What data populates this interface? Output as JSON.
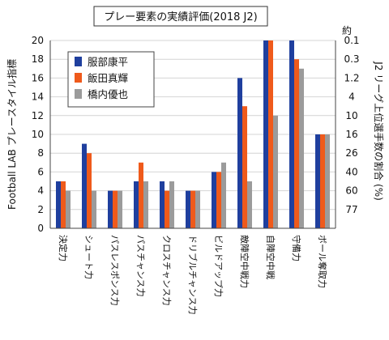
{
  "chart_data": {
    "type": "bar",
    "title": "プレー要素の実績評価(2018 J2)",
    "ylabel": "Football LAB プレースタイル指標",
    "ylabel_right": "J2 リーグ上位選手数の割合 (%)",
    "ylabel_right_prefix": "約",
    "ylim": [
      0,
      20
    ],
    "y_ticks": [
      0,
      2,
      4,
      6,
      8,
      10,
      12,
      14,
      16,
      18,
      20
    ],
    "y_right_ticks": [
      "0.1",
      "0.3",
      "1.2",
      "4",
      "10",
      "16",
      "26",
      "40",
      "60",
      "77"
    ],
    "grid": true,
    "legend_position": "top-left",
    "categories": [
      "決定力",
      "シュート力",
      "パスレスポンス力",
      "パスチャンス力",
      "クロスチャンス力",
      "ドリブルチャンス力",
      "ビルドアップ力",
      "敵陣空中戦力",
      "自陣空中戦",
      "守備力",
      "ボール奪取力"
    ],
    "series": [
      {
        "name": "服部康平",
        "color": "#1f3f9e",
        "values": [
          5,
          9,
          4,
          5,
          5,
          4,
          6,
          16,
          20,
          20,
          10
        ]
      },
      {
        "name": "飯田真輝",
        "color": "#ef5a1b",
        "values": [
          5,
          8,
          4,
          7,
          4,
          4,
          6,
          13,
          20,
          18,
          10
        ]
      },
      {
        "name": "橋内優也",
        "color": "#9b9b9b",
        "values": [
          4,
          4,
          4,
          5,
          5,
          4,
          7,
          5,
          12,
          17,
          10
        ]
      }
    ]
  }
}
